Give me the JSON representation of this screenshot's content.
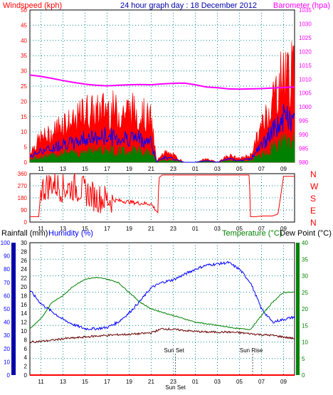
{
  "header": {
    "windspeed_label": "Windspeed (kph)",
    "title": "24 hour graph day : 18 December 2012",
    "barometer_label": "Barometer (hpa)"
  },
  "colors": {
    "wind_gust": "#ff0000",
    "wind_avg": "#0000ff",
    "wind_low": "#008000",
    "barometer": "#ff00ff",
    "direction": "#ff0000",
    "humidity": "#0000ff",
    "temperature": "#008000",
    "dewpoint": "#660000",
    "rain": "#ff0000",
    "grid": "#0a8a8a",
    "axis_left": "#ff0000",
    "axis_right": "#ff00ff",
    "axis_humidity": "#0000ff",
    "axis_temp": "#008000"
  },
  "chart_data": [
    {
      "type": "line",
      "title": "24 hour graph day : 18 December 2012",
      "ylabel": "Windspeed (kph)",
      "y2label": "Barometer (hpa)",
      "ylim": [
        0,
        50
      ],
      "y2lim": [
        980,
        1035
      ],
      "x_ticks": [
        "11",
        "13",
        "15",
        "17",
        "19",
        "21",
        "23",
        "01",
        "03",
        "05",
        "07",
        "09"
      ],
      "y_ticks": [
        0,
        5,
        10,
        15,
        20,
        25,
        30,
        35,
        40,
        45,
        50
      ],
      "y2_ticks": [
        980,
        985,
        990,
        995,
        1000,
        1005,
        1010,
        1015,
        1020,
        1025,
        1030,
        1035
      ],
      "series": [
        {
          "name": "Windspeed",
          "axis": "left",
          "hours": [
            0,
            1,
            2,
            3,
            4,
            5,
            6,
            7,
            8,
            9,
            10,
            11,
            11.5,
            12,
            13,
            14,
            15,
            16,
            17,
            18,
            19,
            20,
            21,
            22,
            23,
            24
          ],
          "values": [
            3,
            7,
            8,
            12,
            11,
            15,
            14,
            16,
            14,
            15,
            14,
            12,
            0,
            3,
            2,
            0,
            0,
            1,
            0,
            2,
            1,
            2,
            10,
            18,
            26,
            25
          ]
        },
        {
          "name": "Barometer",
          "axis": "right",
          "hours": [
            0,
            1,
            2,
            3,
            4,
            5,
            6,
            7,
            8,
            9,
            10,
            11,
            12,
            13,
            14,
            15,
            16,
            17,
            18,
            19,
            20,
            21,
            22,
            23,
            24
          ],
          "values": [
            1011.5,
            1011,
            1010.3,
            1009.5,
            1008.8,
            1008.2,
            1007.8,
            1007.6,
            1007.8,
            1008,
            1008.1,
            1008,
            1008.3,
            1008.5,
            1008.6,
            1008,
            1007.2,
            1006.9,
            1006.5,
            1006.4,
            1006.5,
            1006.6,
            1006.8,
            1007,
            1007.2
          ]
        }
      ]
    },
    {
      "type": "line",
      "title": "",
      "ylabel": "",
      "ylim": [
        0,
        360
      ],
      "x_ticks": [
        "11",
        "13",
        "15",
        "17",
        "19",
        "21",
        "23",
        "01",
        "03",
        "05",
        "07",
        "09"
      ],
      "y_ticks": [
        0,
        90,
        180,
        270,
        360
      ],
      "direction_labels": [
        "N",
        "W",
        "S",
        "E",
        "N"
      ],
      "series": [
        {
          "name": "Direction",
          "hours": [
            0,
            0.8,
            1,
            2,
            3,
            4,
            5,
            6,
            7,
            8,
            9,
            10,
            11,
            11.6,
            11.7,
            12,
            14,
            15,
            16,
            17,
            18,
            19,
            19.9,
            20,
            20.5,
            21,
            22,
            22.5,
            23,
            23.5,
            24
          ],
          "values": [
            40,
            40,
            240,
            290,
            250,
            260,
            230,
            180,
            170,
            160,
            150,
            140,
            135,
            70,
            330,
            350,
            350,
            350,
            350,
            350,
            350,
            350,
            350,
            40,
            40,
            45,
            45,
            60,
            340,
            340,
            340
          ]
        }
      ]
    },
    {
      "type": "line",
      "title": "",
      "ylabel": "Rainfall (mm)",
      "y2label": "Humidity (%)",
      "y3label": "Temperature (°C)",
      "y4label": "Dew Point (°C)",
      "ylim": [
        0,
        30
      ],
      "humidity_lim": [
        0,
        100
      ],
      "temp_lim": [
        0,
        40
      ],
      "x_ticks": [
        "11",
        "13",
        "15",
        "17",
        "19",
        "21",
        "23",
        "01",
        "03",
        "05",
        "07",
        "09"
      ],
      "rain_ticks": [
        0,
        2,
        4,
        6,
        8,
        10,
        12,
        14,
        16,
        18,
        20,
        22,
        24,
        26,
        28,
        30
      ],
      "humidity_ticks": [
        0,
        10,
        20,
        30,
        40,
        50,
        60,
        70,
        80,
        90,
        100
      ],
      "temp_ticks": [
        0,
        5,
        10,
        15,
        20,
        25,
        30,
        35,
        40
      ],
      "annotations": [
        "Sun Set",
        "Sun Rise"
      ],
      "bottom_overlay_label": "Sun Set",
      "series": [
        {
          "name": "Humidity",
          "axis": "humidity",
          "hours": [
            0,
            1,
            2,
            3,
            4,
            5,
            6,
            7,
            8,
            9,
            10,
            11,
            12,
            13,
            14,
            15,
            16,
            17,
            18,
            19,
            20,
            21,
            22,
            23,
            24
          ],
          "values": [
            64,
            54,
            48,
            42,
            38,
            35,
            35,
            36,
            40,
            47,
            56,
            66,
            70,
            72,
            76,
            80,
            83,
            84,
            85,
            80,
            70,
            50,
            40,
            42,
            44
          ]
        },
        {
          "name": "Temperature",
          "axis": "temp",
          "hours": [
            0,
            1,
            2,
            3,
            4,
            5,
            6,
            7,
            8,
            9,
            10,
            11,
            12,
            13,
            14,
            15,
            16,
            17,
            18,
            19,
            20,
            21,
            22,
            23,
            24
          ],
          "values": [
            14,
            17,
            22,
            24,
            27,
            29,
            29.5,
            29,
            28,
            25,
            22,
            20,
            19,
            18,
            17,
            16,
            15.5,
            15,
            14.5,
            14,
            13.8,
            18,
            22,
            25,
            25
          ]
        },
        {
          "name": "Dew Point",
          "axis": "temp",
          "hours": [
            0,
            1,
            2,
            3,
            4,
            5,
            6,
            7,
            8,
            9,
            10,
            11,
            12,
            13,
            14,
            15,
            16,
            17,
            18,
            19,
            20,
            21,
            22,
            23,
            24
          ],
          "values": [
            10,
            10.2,
            10.5,
            11,
            11.2,
            11.5,
            11.8,
            12,
            12.2,
            12.3,
            12.5,
            12.8,
            14,
            13.8,
            13.5,
            13.2,
            13,
            13,
            13,
            12.8,
            12.5,
            12.2,
            12,
            11.5,
            11
          ]
        },
        {
          "name": "Rainfall",
          "axis": "rain",
          "hours": [
            0,
            24
          ],
          "values": [
            0,
            0
          ]
        }
      ]
    }
  ]
}
